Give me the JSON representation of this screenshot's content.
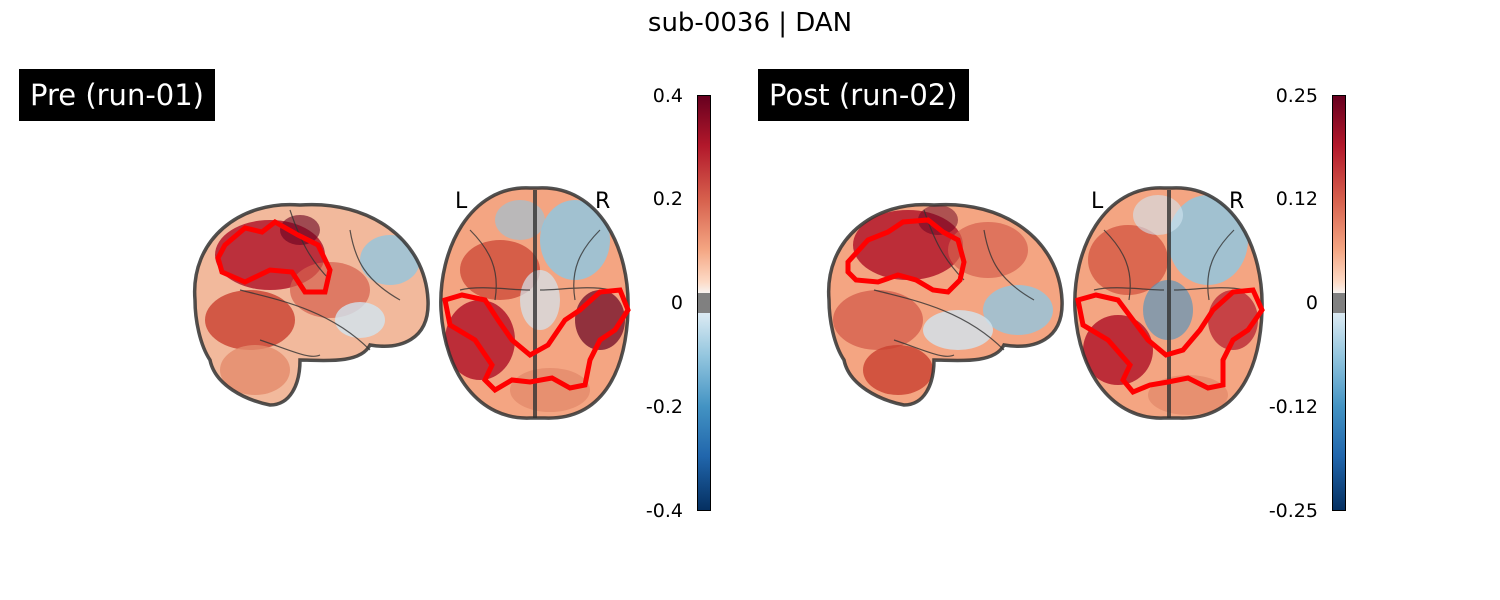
{
  "figure": {
    "title": "sub-0036 | DAN"
  },
  "panels": [
    {
      "label": "Pre (run-01)",
      "hemisphere_left": "L",
      "hemisphere_right": "R",
      "colorbar": {
        "ticks": [
          "0.4",
          "0.2",
          "0",
          "-0.2",
          "-0.4"
        ],
        "colormap": "RdBu_r"
      }
    },
    {
      "label": "Post (run-02)",
      "hemisphere_left": "L",
      "hemisphere_right": "R",
      "colorbar": {
        "ticks": [
          "0.25",
          "0.12",
          "0",
          "-0.12",
          "-0.25"
        ],
        "colormap": "RdBu_r"
      }
    }
  ],
  "colors": {
    "roi_outline": "#ff0000",
    "brain_outline": "#333333",
    "positive": "#b2182b",
    "negative": "#2166ac"
  }
}
